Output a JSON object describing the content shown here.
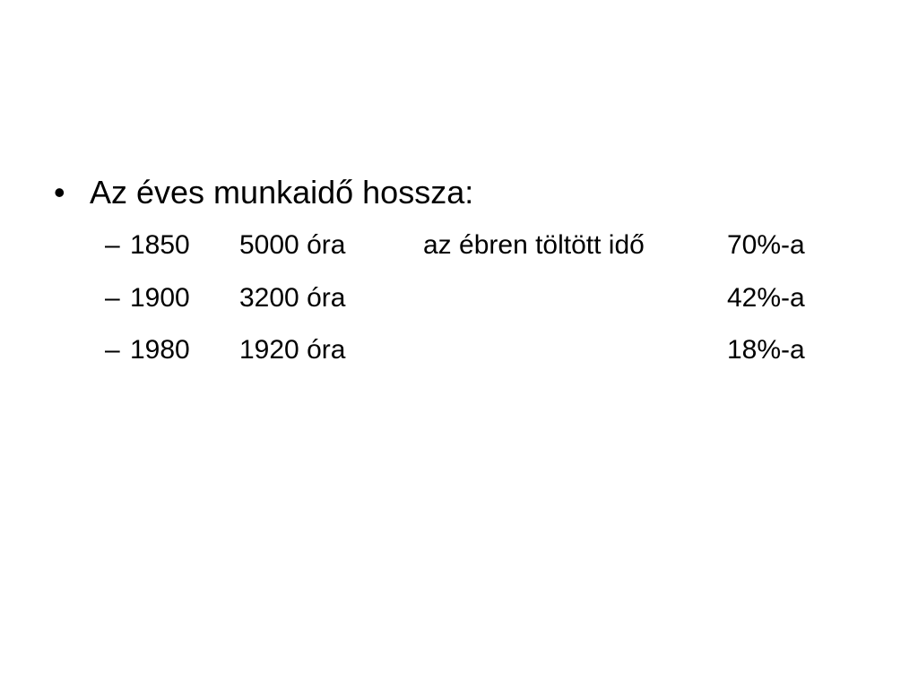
{
  "slide": {
    "bullet": {
      "marker": "•",
      "text": "Az éves munkaidő hossza:"
    },
    "rows": [
      {
        "marker": "–",
        "year": "1850",
        "hours": "5000 óra",
        "note": "az ébren töltött idő",
        "percent": "70%-a"
      },
      {
        "marker": "–",
        "year": "1900",
        "hours": "3200 óra",
        "note": "",
        "percent": "42%-a"
      },
      {
        "marker": "–",
        "year": "1980",
        "hours": "1920 óra",
        "note": "",
        "percent": "18%-a"
      }
    ]
  }
}
